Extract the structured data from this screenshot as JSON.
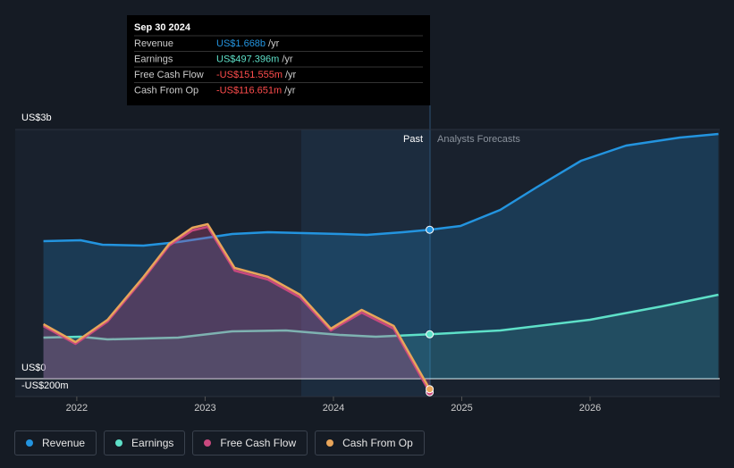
{
  "chart_data": {
    "type": "line",
    "xlim": [
      2021.52,
      2027.01
    ],
    "xticks": [
      2022,
      2023,
      2024,
      2025,
      2026
    ],
    "ylim": [
      -0.2,
      3
    ],
    "yticks": [
      {
        "value": 3,
        "label": "US$3b"
      },
      {
        "value": 0,
        "label": "US$0"
      },
      {
        "value": -0.2,
        "label": "-US$200m"
      }
    ],
    "past_label": "Past",
    "forecast_label": "Analysts Forecasts",
    "series": [
      {
        "name": "Revenue",
        "color": "#2394df",
        "x": [
          2021.74,
          2022.03,
          2022.2,
          2022.52,
          2022.79,
          2023.21,
          2023.49,
          2023.77,
          2024.05,
          2024.26,
          2024.54,
          2024.75,
          2024.99,
          2025.3,
          2025.58,
          2025.93,
          2026.28,
          2026.7,
          2027.0
        ],
        "values": [
          1.54,
          1.55,
          1.5,
          1.49,
          1.53,
          1.62,
          1.64,
          1.63,
          1.62,
          1.61,
          1.64,
          1.668,
          1.71,
          1.89,
          2.14,
          2.44,
          2.61,
          2.7,
          2.74
        ]
      },
      {
        "name": "Earnings",
        "color": "#5ee0c8",
        "x": [
          2021.74,
          2022.03,
          2022.24,
          2022.79,
          2023.21,
          2023.63,
          2024.05,
          2024.33,
          2024.75,
          2025.3,
          2026.0,
          2026.56,
          2027.0
        ],
        "values": [
          0.46,
          0.47,
          0.44,
          0.46,
          0.53,
          0.54,
          0.49,
          0.47,
          0.497,
          0.54,
          0.66,
          0.81,
          0.94
        ]
      },
      {
        "name": "Free Cash Flow",
        "color": "#c9497f",
        "x": [
          2021.74,
          2021.99,
          2022.24,
          2022.52,
          2022.72,
          2022.9,
          2023.02,
          2023.23,
          2023.49,
          2023.74,
          2023.98,
          2024.22,
          2024.47,
          2024.75
        ],
        "values": [
          0.59,
          0.39,
          0.64,
          1.12,
          1.49,
          1.66,
          1.7,
          1.21,
          1.11,
          0.91,
          0.54,
          0.74,
          0.56,
          -0.152
        ]
      },
      {
        "name": "Cash From Op",
        "color": "#e8a55a",
        "x": [
          2021.74,
          2021.99,
          2022.24,
          2022.52,
          2022.72,
          2022.9,
          2023.02,
          2023.23,
          2023.49,
          2023.74,
          2023.98,
          2024.22,
          2024.47,
          2024.75
        ],
        "values": [
          0.61,
          0.41,
          0.66,
          1.14,
          1.51,
          1.69,
          1.73,
          1.24,
          1.14,
          0.94,
          0.56,
          0.77,
          0.59,
          -0.117
        ]
      }
    ],
    "tooltip": {
      "date": "Sep 30 2024",
      "unit": "/yr",
      "rows": [
        {
          "value": "US$1.668b"
        },
        {
          "value": "US$497.396m"
        },
        {
          "value": "-US$151.555m"
        },
        {
          "value": "-US$116.651m"
        }
      ]
    }
  }
}
